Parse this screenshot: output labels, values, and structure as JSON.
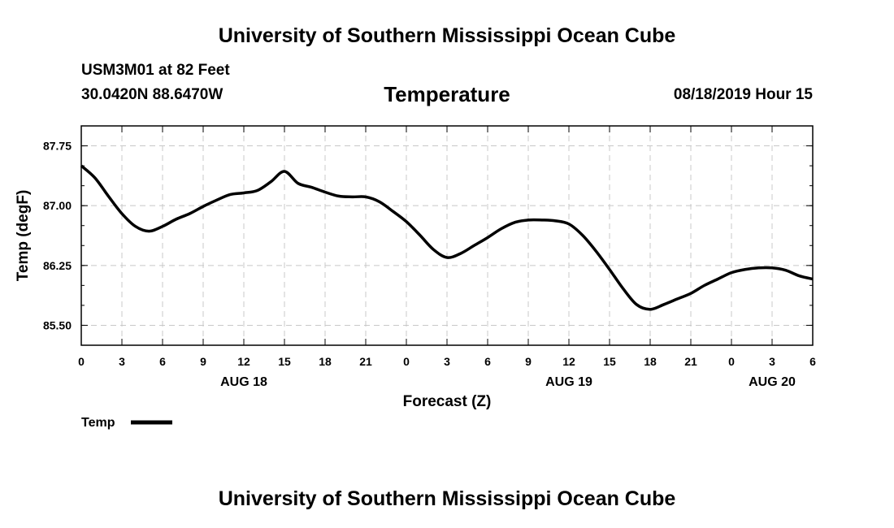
{
  "header": {
    "top_title": "University of Southern Mississippi Ocean Cube",
    "station": "USM3M01 at 82 Feet",
    "coords": "30.0420N 88.6470W",
    "plot_title": "Temperature",
    "datetime": "08/18/2019 Hour 15"
  },
  "footer": {
    "bottom_title": "University of Southern Mississippi Ocean Cube"
  },
  "legend": {
    "label": "Temp"
  },
  "colors": {
    "line": "#000000",
    "grid": "#c8c8c8",
    "background": "#ffffff"
  },
  "chart_data": {
    "type": "line",
    "title": "Temperature",
    "xlabel": "Forecast (Z)",
    "ylabel": "Temp (degF)",
    "xlim": [
      0,
      54
    ],
    "ylim": [
      85.25,
      88.0
    ],
    "y_ticks": [
      85.5,
      86.25,
      87.0,
      87.75
    ],
    "y_tick_labels": [
      "85.50",
      "86.25",
      "87.00",
      "87.75"
    ],
    "x_ticks": [
      0,
      3,
      6,
      9,
      12,
      15,
      18,
      21,
      24,
      27,
      30,
      33,
      36,
      39,
      42,
      45,
      48,
      51,
      54
    ],
    "x_tick_labels": [
      "0",
      "3",
      "6",
      "9",
      "12",
      "15",
      "18",
      "21",
      "0",
      "3",
      "6",
      "9",
      "12",
      "15",
      "18",
      "21",
      "0",
      "3",
      "6"
    ],
    "date_labels": [
      {
        "x": 12,
        "label": "AUG 18"
      },
      {
        "x": 36,
        "label": "AUG 19"
      },
      {
        "x": 51,
        "label": "AUG 20"
      }
    ],
    "grid": true,
    "legend_position": "bottom-left",
    "series": [
      {
        "name": "Temp",
        "x": [
          0,
          1,
          2,
          3,
          4,
          5,
          6,
          7,
          8,
          9,
          10,
          11,
          12,
          13,
          14,
          15,
          16,
          17,
          18,
          19,
          20,
          21,
          22,
          23,
          24,
          25,
          26,
          27,
          28,
          29,
          30,
          31,
          32,
          33,
          34,
          35,
          36,
          37,
          38,
          39,
          40,
          41,
          42,
          43,
          44,
          45,
          46,
          47,
          48,
          49,
          50,
          51,
          52,
          53,
          54
        ],
        "values": [
          87.5,
          87.35,
          87.12,
          86.9,
          86.74,
          86.68,
          86.74,
          86.83,
          86.9,
          86.99,
          87.07,
          87.14,
          87.16,
          87.19,
          87.3,
          87.43,
          87.28,
          87.23,
          87.17,
          87.12,
          87.11,
          87.11,
          87.05,
          86.93,
          86.8,
          86.63,
          86.45,
          86.35,
          86.4,
          86.5,
          86.6,
          86.71,
          86.79,
          86.82,
          86.82,
          86.81,
          86.77,
          86.63,
          86.43,
          86.2,
          85.96,
          85.76,
          85.7,
          85.76,
          85.83,
          85.9,
          86.0,
          86.08,
          86.16,
          86.2,
          86.22,
          86.22,
          86.19,
          86.12,
          86.08
        ]
      }
    ]
  }
}
